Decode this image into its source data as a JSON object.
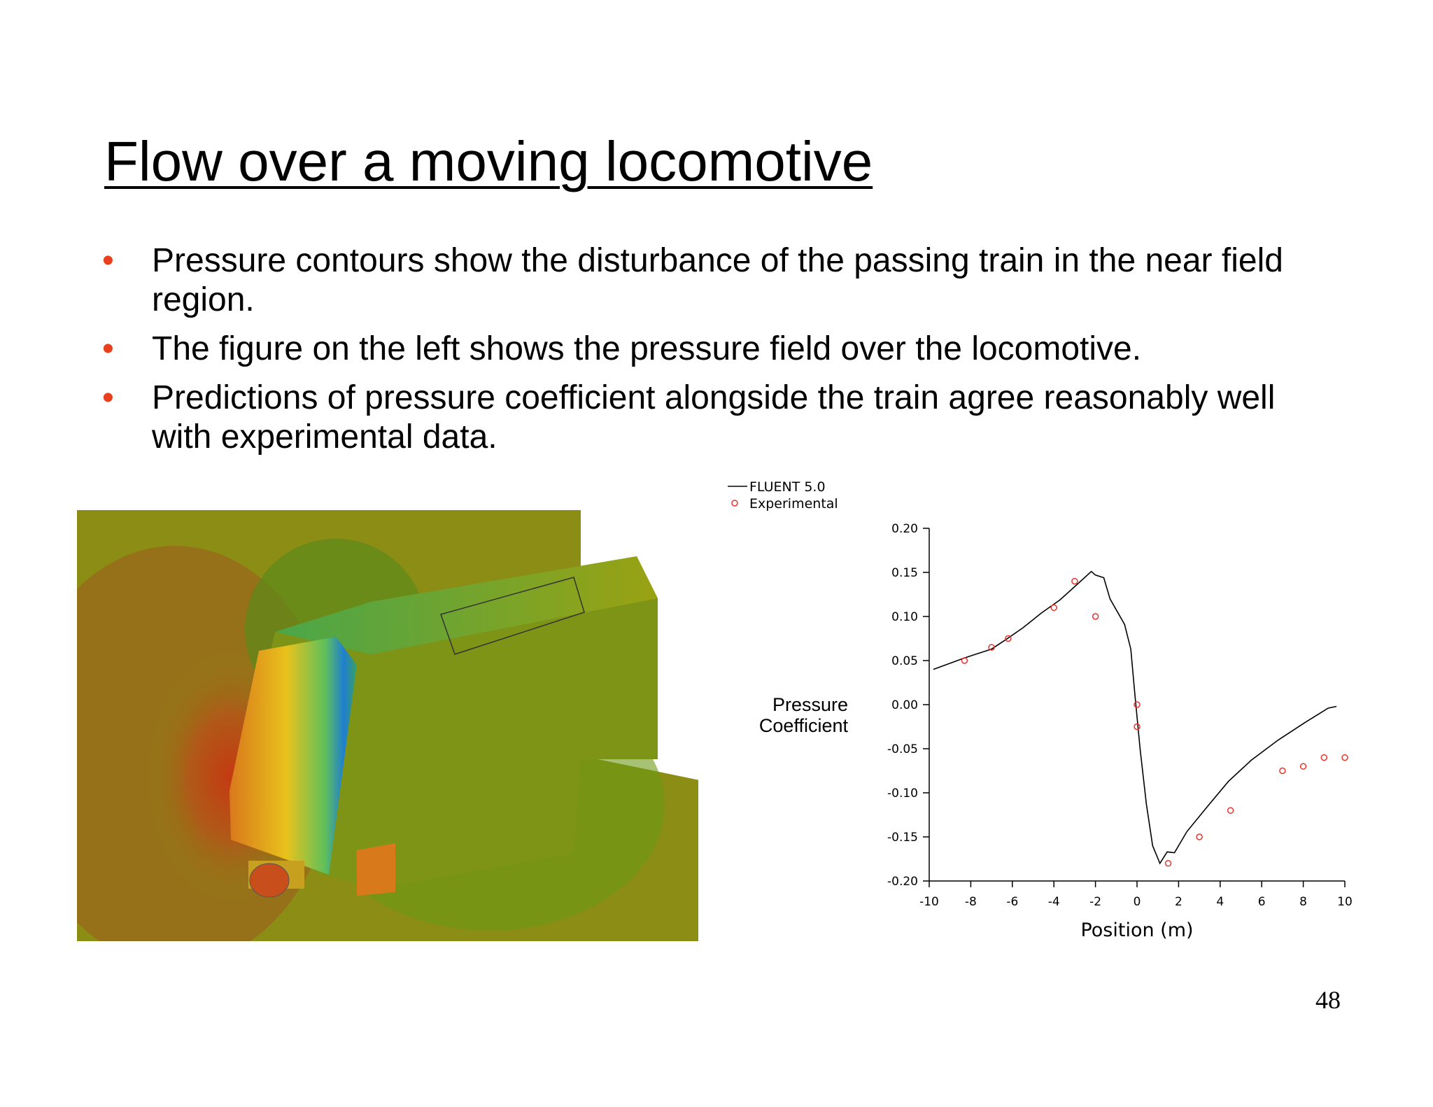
{
  "slide": {
    "title": "Flow over a moving locomotive",
    "bullets": [
      "Pressure contours show the disturbance of the passing train in the near field region.",
      "The figure on the left shows the pressure field over the locomotive.",
      "Predictions of pressure coefficient alongside the train agree reasonably well with experimental data."
    ],
    "page_number": "48"
  },
  "chart_data": {
    "type": "line",
    "xlabel": "Position (m)",
    "ylabel": "Pressure Coefficient",
    "xlim": [
      -10,
      10
    ],
    "xticks": [
      -10,
      -8,
      -6,
      -4,
      -2,
      0,
      2,
      4,
      6,
      8,
      10
    ],
    "ylim": [
      -0.2,
      0.2
    ],
    "yticks": [
      {
        "value": -0.2,
        "label": "-0.20"
      },
      {
        "value": -0.15,
        "label": "-0.15"
      },
      {
        "value": -0.1,
        "label": "-0.10"
      },
      {
        "value": -0.05,
        "label": "-0.05"
      },
      {
        "value": 0,
        "label": "0.00"
      },
      {
        "value": 0.05,
        "label": "0.05"
      },
      {
        "value": 0.1,
        "label": "0.10"
      },
      {
        "value": 0.15,
        "label": "0.15"
      },
      {
        "value": 0.2,
        "label": "0.20"
      }
    ],
    "series": [
      {
        "name": "FLUENT 5.0",
        "color": "#000000",
        "mode": "line",
        "x": [
          -9.8,
          -8.3,
          -7,
          -6.3,
          -5.5,
          -4.6,
          -3.7,
          -2.9,
          -2.2,
          -2,
          -1.6,
          -1.3,
          -0.6,
          -0.3,
          -0.1,
          0.15,
          0.45,
          0.75,
          1.1,
          1.45,
          1.8,
          2.4,
          3.3,
          4.4,
          5.5,
          6.8,
          8.1,
          9.2,
          9.6
        ],
        "values": [
          0.04,
          0.053,
          0.063,
          0.074,
          0.087,
          0.104,
          0.119,
          0.136,
          0.151,
          0.147,
          0.144,
          0.12,
          0.091,
          0.063,
          0.011,
          -0.051,
          -0.113,
          -0.16,
          -0.18,
          -0.167,
          -0.168,
          -0.144,
          -0.118,
          -0.087,
          -0.063,
          -0.04,
          -0.02,
          -0.004,
          -0.002
        ]
      },
      {
        "name": "Experimental",
        "color": "#e8332a",
        "mode": "markers",
        "x": [
          -8.3,
          -7,
          -6.2,
          -4,
          -3,
          -2,
          0,
          0,
          1.5,
          3,
          4.5,
          7,
          8,
          9,
          10
        ],
        "values": [
          0.05,
          0.065,
          0.075,
          0.11,
          0.14,
          0.1,
          0,
          -0.025,
          -0.18,
          -0.15,
          -0.12,
          -0.075,
          -0.07,
          -0.06,
          -0.06
        ]
      }
    ]
  }
}
